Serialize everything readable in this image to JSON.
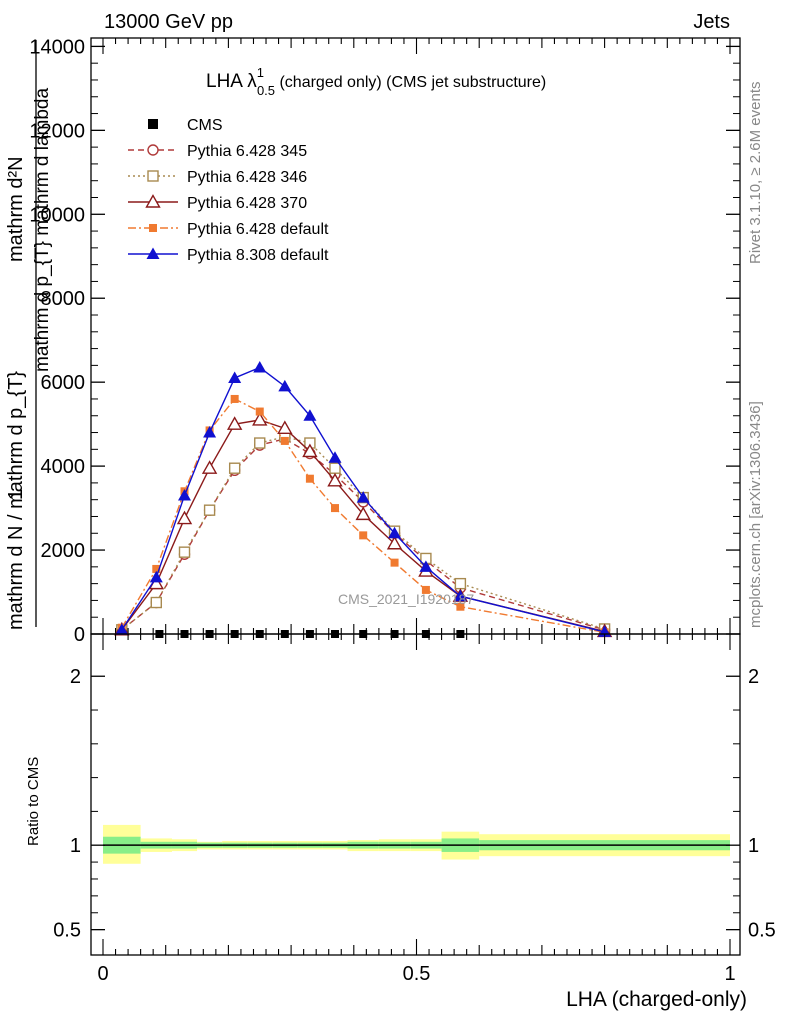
{
  "header": {
    "left": "13000 GeV pp",
    "right": "Jets"
  },
  "side_labels": {
    "rivet": "Rivet 3.1.10, ≥ 2.6M events",
    "mcplots": "mcplots.cern.ch [arXiv:1306.3436]"
  },
  "watermark": "CMS_2021_I1920187",
  "main_title": {
    "main": "LHA λ",
    "sup": "1",
    "sub": "0.5",
    "rest": " (charged only) (CMS jet substructure)"
  },
  "ylabel_main": {
    "top": "mathrm d²N",
    "top_sub": "",
    "bottom": "mathrm d p_{T} mathrm d lambda",
    "prefix": "1",
    "denom": "mathrm d N / mathrm d p_{T}"
  },
  "ylabel_ratio": "Ratio to CMS",
  "xlabel": "LHA (charged-only)",
  "chart_data": [
    {
      "type": "line",
      "panel": "main",
      "xlim": [
        0,
        1
      ],
      "ylim": [
        0,
        14200
      ],
      "yticks": [
        0,
        2000,
        4000,
        6000,
        8000,
        10000,
        12000,
        14000
      ],
      "ytick_labels": [
        "0",
        "2000",
        "4000",
        "6000",
        "8000",
        "10000",
        "12000",
        "14000"
      ],
      "legend_position": "top-left",
      "series": [
        {
          "name": "CMS",
          "style": "data",
          "color": "#000000",
          "x": [
            0.09,
            0.13,
            0.17,
            0.21,
            0.25,
            0.29,
            0.33,
            0.37,
            0.415,
            0.465,
            0.515,
            0.57
          ],
          "y": [
            0,
            0,
            0,
            0,
            0,
            0,
            0,
            0,
            0,
            0,
            0,
            0
          ]
        },
        {
          "name": "Pythia 6.428 345",
          "style": "dashed",
          "marker": "open-circle",
          "color": "#b03a3a",
          "x": [
            0.03,
            0.085,
            0.13,
            0.17,
            0.21,
            0.25,
            0.29,
            0.33,
            0.37,
            0.415,
            0.465,
            0.515,
            0.57,
            0.8
          ],
          "y": [
            100,
            750,
            1900,
            2950,
            3900,
            4500,
            4650,
            4300,
            3800,
            3150,
            2400,
            1750,
            1100,
            100
          ]
        },
        {
          "name": "Pythia 6.428 346",
          "style": "dotted",
          "marker": "open-square",
          "color": "#a88a50",
          "x": [
            0.03,
            0.085,
            0.13,
            0.17,
            0.21,
            0.25,
            0.29,
            0.33,
            0.37,
            0.415,
            0.465,
            0.515,
            0.57,
            0.8
          ],
          "y": [
            100,
            750,
            1950,
            2950,
            3950,
            4550,
            4700,
            4550,
            3950,
            3250,
            2450,
            1800,
            1200,
            120
          ]
        },
        {
          "name": "Pythia 6.428 370",
          "style": "solid",
          "marker": "open-triangle",
          "color": "#8b1a1a",
          "x": [
            0.03,
            0.085,
            0.13,
            0.17,
            0.21,
            0.25,
            0.29,
            0.33,
            0.37,
            0.415,
            0.465,
            0.515,
            0.57,
            0.8
          ],
          "y": [
            100,
            1200,
            2750,
            3950,
            5000,
            5100,
            4900,
            4350,
            3650,
            2850,
            2150,
            1500,
            900,
            60
          ]
        },
        {
          "name": "Pythia 6.428 default",
          "style": "dashdot",
          "marker": "filled-square",
          "color": "#f07a30",
          "x": [
            0.03,
            0.085,
            0.13,
            0.17,
            0.21,
            0.25,
            0.29,
            0.33,
            0.37,
            0.415,
            0.465,
            0.515,
            0.57,
            0.8
          ],
          "y": [
            150,
            1550,
            3400,
            4850,
            5600,
            5300,
            4600,
            3700,
            3000,
            2350,
            1700,
            1050,
            650,
            40
          ]
        },
        {
          "name": "Pythia 8.308 default",
          "style": "solid",
          "marker": "filled-triangle",
          "color": "#1010d0",
          "x": [
            0.03,
            0.085,
            0.13,
            0.17,
            0.21,
            0.25,
            0.29,
            0.33,
            0.37,
            0.415,
            0.465,
            0.515,
            0.57,
            0.8
          ],
          "y": [
            100,
            1350,
            3300,
            4800,
            6100,
            6350,
            5900,
            5200,
            4200,
            3250,
            2400,
            1600,
            900,
            50
          ]
        }
      ]
    },
    {
      "type": "band",
      "panel": "ratio",
      "xlim": [
        0,
        1
      ],
      "ylim": [
        0.35,
        2.25
      ],
      "yticks": [
        0.5,
        1,
        2
      ],
      "ytick_labels": [
        "0.5",
        "1",
        "2"
      ],
      "xticks": [
        0,
        0.5,
        1
      ],
      "xtick_labels": [
        "0",
        "0.5",
        "1"
      ],
      "reference": 1,
      "bands": [
        {
          "x0": 0.0,
          "x1": 0.06,
          "inner": [
            0.95,
            1.05
          ],
          "outer": [
            0.89,
            1.12
          ]
        },
        {
          "x0": 0.06,
          "x1": 0.11,
          "inner": [
            0.98,
            1.02
          ],
          "outer": [
            0.96,
            1.04
          ]
        },
        {
          "x0": 0.11,
          "x1": 0.15,
          "inner": [
            0.98,
            1.02
          ],
          "outer": [
            0.965,
            1.035
          ]
        },
        {
          "x0": 0.15,
          "x1": 0.19,
          "inner": [
            0.985,
            1.015
          ],
          "outer": [
            0.975,
            1.02
          ]
        },
        {
          "x0": 0.19,
          "x1": 0.23,
          "inner": [
            0.985,
            1.015
          ],
          "outer": [
            0.975,
            1.025
          ]
        },
        {
          "x0": 0.23,
          "x1": 0.27,
          "inner": [
            0.985,
            1.015
          ],
          "outer": [
            0.975,
            1.025
          ]
        },
        {
          "x0": 0.27,
          "x1": 0.31,
          "inner": [
            0.985,
            1.015
          ],
          "outer": [
            0.975,
            1.025
          ]
        },
        {
          "x0": 0.31,
          "x1": 0.35,
          "inner": [
            0.985,
            1.015
          ],
          "outer": [
            0.975,
            1.025
          ]
        },
        {
          "x0": 0.35,
          "x1": 0.39,
          "inner": [
            0.985,
            1.015
          ],
          "outer": [
            0.975,
            1.025
          ]
        },
        {
          "x0": 0.39,
          "x1": 0.44,
          "inner": [
            0.98,
            1.02
          ],
          "outer": [
            0.965,
            1.03
          ]
        },
        {
          "x0": 0.44,
          "x1": 0.49,
          "inner": [
            0.98,
            1.02
          ],
          "outer": [
            0.965,
            1.035
          ]
        },
        {
          "x0": 0.49,
          "x1": 0.54,
          "inner": [
            0.98,
            1.02
          ],
          "outer": [
            0.965,
            1.035
          ]
        },
        {
          "x0": 0.54,
          "x1": 0.6,
          "inner": [
            0.96,
            1.04
          ],
          "outer": [
            0.915,
            1.08
          ]
        },
        {
          "x0": 0.6,
          "x1": 1.0,
          "inner": [
            0.97,
            1.03
          ],
          "outer": [
            0.935,
            1.065
          ]
        }
      ]
    }
  ]
}
